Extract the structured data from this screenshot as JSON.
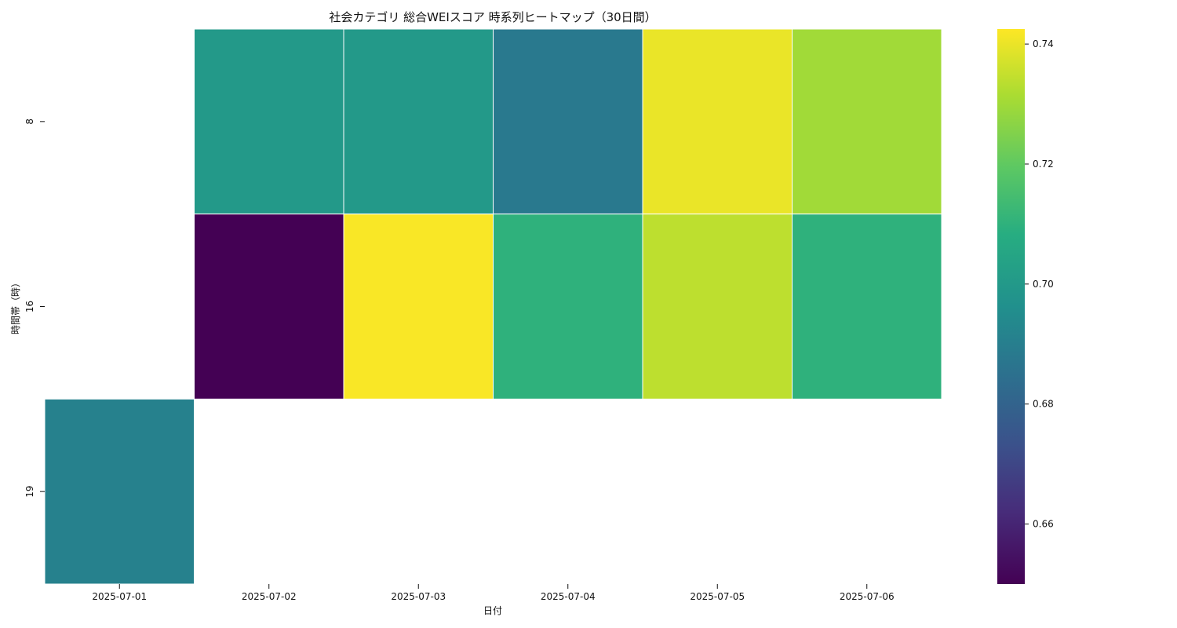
{
  "chart_data": {
    "type": "heatmap",
    "title": "社会カテゴリ 総合WEIスコア 時系列ヒートマップ（30日間）",
    "xlabel": "日付",
    "ylabel": "時間帯（時）",
    "x_categories": [
      "2025-07-01",
      "2025-07-02",
      "2025-07-03",
      "2025-07-04",
      "2025-07-05",
      "2025-07-06"
    ],
    "y_categories": [
      "8",
      "16",
      "19"
    ],
    "values": [
      [
        null,
        0.7,
        0.7,
        0.688,
        0.74,
        0.73
      ],
      [
        null,
        0.65,
        0.742,
        0.71,
        0.734,
        0.71
      ],
      [
        0.691,
        null,
        null,
        null,
        null,
        null
      ]
    ],
    "colormap": "viridis",
    "colorbar": {
      "min": 0.65,
      "max": 0.7425,
      "ticks": [
        "0.66",
        "0.68",
        "0.70",
        "0.72",
        "0.74"
      ]
    },
    "cell_border_color": "#ffffff",
    "missing_color": "#ffffff"
  }
}
